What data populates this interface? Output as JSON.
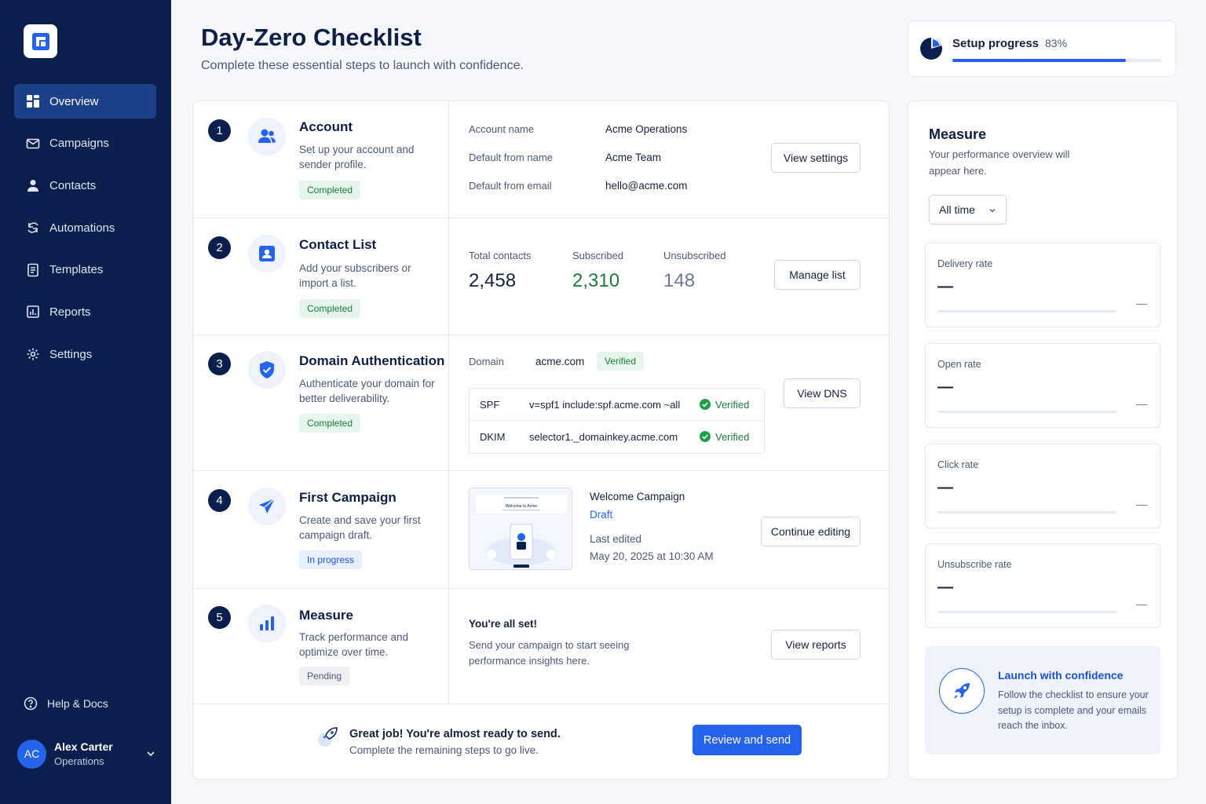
{
  "sidebar": {
    "items": [
      {
        "label": "Overview",
        "icon": "grid-icon",
        "active": true
      },
      {
        "label": "Campaigns",
        "icon": "mail-icon"
      },
      {
        "label": "Contacts",
        "icon": "person-icon"
      },
      {
        "label": "Automations",
        "icon": "refresh-icon"
      },
      {
        "label": "Templates",
        "icon": "document-icon"
      },
      {
        "label": "Reports",
        "icon": "chart-icon"
      },
      {
        "label": "Settings",
        "icon": "gear-icon"
      }
    ],
    "help_label": "Help & Docs",
    "user": {
      "initials": "AC",
      "name": "Alex Carter",
      "role": "Operations"
    }
  },
  "header": {
    "title": "Day-Zero Checklist",
    "subtitle": "Complete these essential steps to launch with confidence."
  },
  "progress": {
    "label": "Setup progress",
    "value_text": "83%",
    "value": 0.83
  },
  "steps": [
    {
      "number": "1",
      "title": "Account",
      "desc": "Set up your account and sender profile.",
      "status": "Completed",
      "fields": [
        {
          "label": "Account name",
          "value": "Acme Operations"
        },
        {
          "label": "Default from name",
          "value": "Acme Team"
        },
        {
          "label": "Default from email",
          "value": "hello@acme.com"
        }
      ],
      "button": "View settings"
    },
    {
      "number": "2",
      "title": "Contact List",
      "desc": "Add your subscribers or import a list.",
      "status": "Completed",
      "stats": [
        {
          "label": "Total contacts",
          "value": "2,458"
        },
        {
          "label": "Subscribed",
          "value": "2,310"
        },
        {
          "label": "Unsubscribed",
          "value": "148"
        }
      ],
      "button": "Manage list"
    },
    {
      "number": "3",
      "title": "Domain Authentication",
      "desc": "Authenticate your domain for better deliverability.",
      "status": "Completed",
      "domain_label": "Domain",
      "domain": "acme.com",
      "domain_status": "Verified",
      "records": [
        {
          "type": "SPF",
          "value": "v=spf1 include:spf.acme.com ~all",
          "status": "Verified"
        },
        {
          "type": "DKIM",
          "value": "selector1._domainkey.acme.com",
          "status": "Verified"
        }
      ],
      "button": "View DNS"
    },
    {
      "number": "4",
      "title": "First Campaign",
      "desc": "Create and save your first campaign draft.",
      "status": "In progress",
      "campaign_name": "Welcome Campaign",
      "campaign_status": "Draft",
      "last_edited_label": "Last edited",
      "last_edited": "May 20, 2025 at 10:30 AM",
      "thumb_title": "Welcome to Acme",
      "button": "Continue editing"
    },
    {
      "number": "5",
      "title": "Measure",
      "desc": "Track performance and optimize over time.",
      "status": "Pending",
      "headline": "You're all set!",
      "body": "Send your campaign to start seeing performance insights here.",
      "button": "View reports"
    }
  ],
  "footer": {
    "title": "Great job! You're almost ready to send.",
    "subtitle": "Complete the remaining steps to go live.",
    "button": "Review and send"
  },
  "measure": {
    "title": "Measure",
    "desc": "Your performance overview will appear here.",
    "filter": "All time",
    "metrics": [
      {
        "label": "Delivery rate",
        "value": "—",
        "trend": "—"
      },
      {
        "label": "Open rate",
        "value": "—",
        "trend": "—"
      },
      {
        "label": "Click rate",
        "value": "—",
        "trend": "—"
      },
      {
        "label": "Unsubscribe rate",
        "value": "—",
        "trend": "—"
      }
    ],
    "launch": {
      "title": "Launch with confidence",
      "desc": "Follow the checklist to ensure your setup is complete and your emails reach the inbox."
    }
  },
  "colors": {
    "sidebar": "#0b1f4d",
    "accent": "#2563eb",
    "success": "#1f7a3e"
  }
}
